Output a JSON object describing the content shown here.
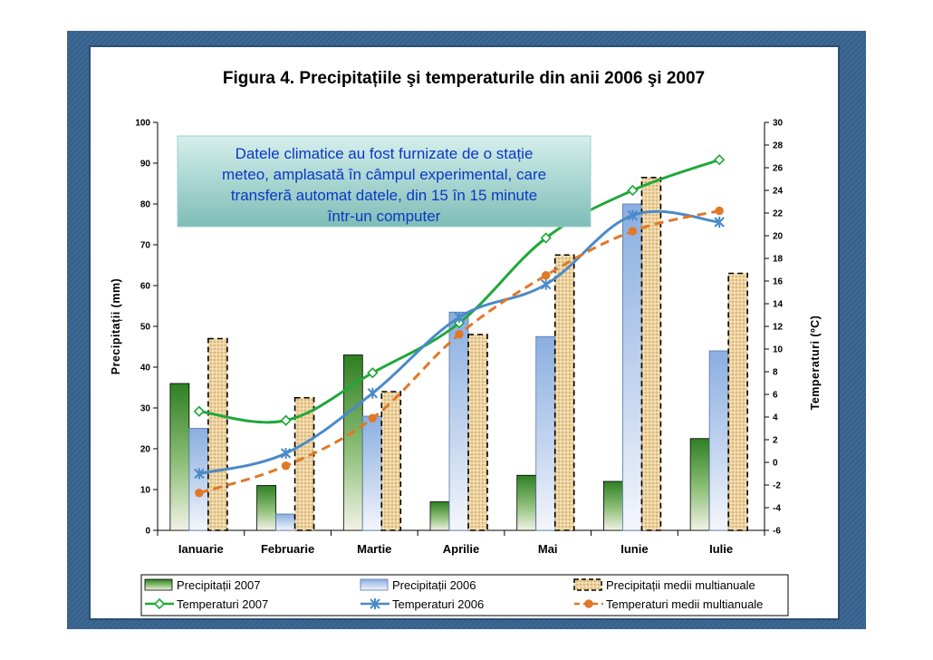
{
  "chart_data": {
    "type": "bar+line",
    "title": "Figura 4. Precipitațiile şi temperaturile din anii 2006 şi 2007",
    "categories": [
      "Ianuarie",
      "Februarie",
      "Martie",
      "Aprilie",
      "Mai",
      "Iunie",
      "Iulie"
    ],
    "ylabel_left": "Precipitații (mm)",
    "ylabel_right": "Temperaturi (ºC)",
    "ylim_left": [
      0,
      100
    ],
    "yticks_left": [
      "0",
      "10",
      "20",
      "30",
      "40",
      "50",
      "60",
      "70",
      "80",
      "90",
      "100"
    ],
    "ylim_right": [
      -6,
      30
    ],
    "yticks_right": [
      "-6",
      "-4",
      "-2",
      "0",
      "2",
      "4",
      "6",
      "8",
      "10",
      "12",
      "14",
      "16",
      "18",
      "20",
      "22",
      "24",
      "26",
      "28",
      "30"
    ],
    "bar_series": [
      {
        "name": "Precipitații 2007",
        "values": [
          36,
          11,
          43,
          7,
          13.5,
          12,
          22.5
        ],
        "color": "#3c8c2a"
      },
      {
        "name": "Precipitații 2006",
        "values": [
          25,
          4,
          28,
          53.5,
          47.5,
          80,
          44
        ],
        "color": "#8fb0e0"
      },
      {
        "name": "Precipitații medii multianuale",
        "values": [
          47,
          32.5,
          34,
          48,
          67.5,
          86.5,
          63
        ],
        "color": "#e9c893"
      }
    ],
    "line_series": [
      {
        "name": "Temperaturi 2007",
        "values": [
          4.5,
          3.7,
          7.9,
          12.3,
          19.8,
          24.0,
          26.7
        ],
        "color": "#1fa83a",
        "marker": "diamond"
      },
      {
        "name": "Temperaturi 2006",
        "values": [
          -1.0,
          0.8,
          6.1,
          12.8,
          15.7,
          21.8,
          21.2
        ],
        "color": "#4a8ac8",
        "marker": "x"
      },
      {
        "name": "Temperaturi medii multianuale",
        "values": [
          -2.7,
          -0.3,
          3.9,
          11.3,
          16.5,
          20.4,
          22.2
        ],
        "color": "#e07828",
        "marker": "circle"
      }
    ],
    "annotation": [
      "Datele climatice au fost furnizate de o stație",
      "meteo, amplasată în câmpul experimental, care",
      "transferă automat datele, din 15 în 15 minute",
      "într-un computer"
    ],
    "legend_position": "bottom",
    "grid": false
  }
}
